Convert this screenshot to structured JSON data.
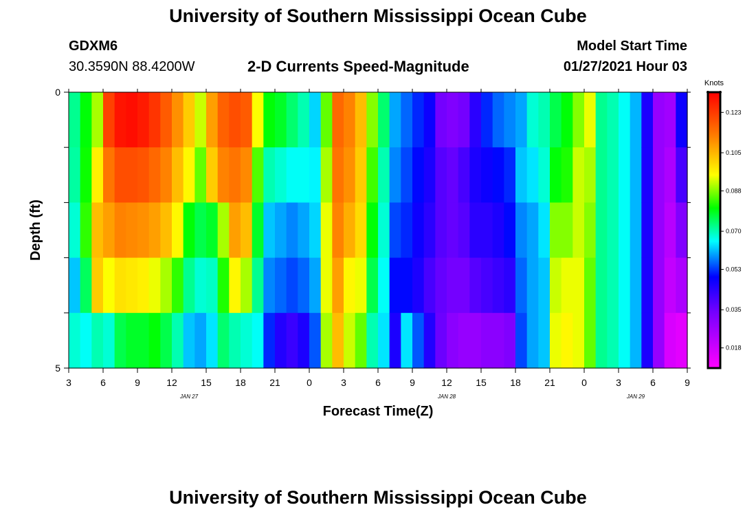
{
  "page": {
    "title_top": "University of Southern Mississippi Ocean Cube",
    "title_bottom": "University of Southern Mississippi Ocean Cube",
    "station_id": "GDXM6",
    "station_coords": "30.3590N 88.4200W",
    "chart_title": "2-D Currents Speed-Magnitude",
    "model_start_label": "Model Start Time",
    "model_start_value": "01/27/2021 Hour 03"
  },
  "colors": {
    "background": "#ffffff",
    "text": "#000000"
  },
  "chart_data": {
    "type": "heatmap",
    "title": "2-D Currents Speed-Magnitude",
    "xlabel": "Forecast Time(Z)",
    "ylabel": "Depth (ft)",
    "colorbar_label": "Knots",
    "x_tick_labels": [
      "3",
      "6",
      "9",
      "12",
      "15",
      "18",
      "21",
      "0",
      "3",
      "6",
      "9",
      "12",
      "15",
      "18",
      "21",
      "0",
      "3",
      "6",
      "9"
    ],
    "date_labels": [
      {
        "text": "JAN 27",
        "at_tick": 3.5
      },
      {
        "text": "JAN 28",
        "at_tick": 11
      },
      {
        "text": "JAN 29",
        "at_tick": 16.5
      }
    ],
    "y_tick_labels": [
      "0",
      "5"
    ],
    "y_range": [
      0,
      5
    ],
    "y_minor_ticks": 4,
    "colorbar_ticks": [
      "0.123",
      "0.105",
      "0.088",
      "0.070",
      "0.053",
      "0.035",
      "0.018"
    ],
    "colorbar_range": [
      0.009,
      0.132
    ],
    "grid_cols": 54,
    "depth_rows": 5,
    "columns": [
      [
        0.072,
        0.071,
        0.068,
        0.062,
        0.068
      ],
      [
        0.08,
        0.081,
        0.083,
        0.075,
        0.066
      ],
      [
        0.09,
        0.097,
        0.104,
        0.102,
        0.07
      ],
      [
        0.122,
        0.114,
        0.108,
        0.095,
        0.068
      ],
      [
        0.129,
        0.12,
        0.112,
        0.099,
        0.076
      ],
      [
        0.13,
        0.12,
        0.111,
        0.098,
        0.078
      ],
      [
        0.128,
        0.119,
        0.11,
        0.097,
        0.078
      ],
      [
        0.124,
        0.116,
        0.108,
        0.094,
        0.08
      ],
      [
        0.118,
        0.112,
        0.104,
        0.09,
        0.076
      ],
      [
        0.11,
        0.104,
        0.096,
        0.083,
        0.07
      ],
      [
        0.102,
        0.096,
        0.08,
        0.072,
        0.062
      ],
      [
        0.092,
        0.086,
        0.076,
        0.068,
        0.06
      ],
      [
        0.108,
        0.102,
        0.078,
        0.069,
        0.064
      ],
      [
        0.117,
        0.112,
        0.09,
        0.082,
        0.074
      ],
      [
        0.12,
        0.114,
        0.108,
        0.096,
        0.07
      ],
      [
        0.118,
        0.111,
        0.104,
        0.09,
        0.068
      ],
      [
        0.095,
        0.085,
        0.078,
        0.072,
        0.066
      ],
      [
        0.08,
        0.07,
        0.062,
        0.058,
        0.052
      ],
      [
        0.078,
        0.068,
        0.06,
        0.056,
        0.045
      ],
      [
        0.074,
        0.066,
        0.058,
        0.054,
        0.042
      ],
      [
        0.07,
        0.066,
        0.06,
        0.056,
        0.046
      ],
      [
        0.063,
        0.065,
        0.063,
        0.06,
        0.055
      ],
      [
        0.086,
        0.09,
        0.094,
        0.094,
        0.09
      ],
      [
        0.116,
        0.114,
        0.112,
        0.108,
        0.104
      ],
      [
        0.112,
        0.11,
        0.106,
        0.096,
        0.092
      ],
      [
        0.104,
        0.102,
        0.1,
        0.094,
        0.086
      ],
      [
        0.088,
        0.084,
        0.08,
        0.076,
        0.07
      ],
      [
        0.074,
        0.07,
        0.068,
        0.066,
        0.064
      ],
      [
        0.06,
        0.058,
        0.054,
        0.05,
        0.046
      ],
      [
        0.056,
        0.054,
        0.052,
        0.05,
        0.064
      ],
      [
        0.052,
        0.05,
        0.048,
        0.046,
        0.055
      ],
      [
        0.048,
        0.046,
        0.044,
        0.04,
        0.045
      ],
      [
        0.034,
        0.038,
        0.038,
        0.036,
        0.035
      ],
      [
        0.032,
        0.036,
        0.036,
        0.034,
        0.03
      ],
      [
        0.034,
        0.04,
        0.038,
        0.034,
        0.028
      ],
      [
        0.044,
        0.046,
        0.044,
        0.038,
        0.028
      ],
      [
        0.052,
        0.048,
        0.044,
        0.04,
        0.03
      ],
      [
        0.056,
        0.05,
        0.046,
        0.042,
        0.03
      ],
      [
        0.058,
        0.052,
        0.05,
        0.044,
        0.032
      ],
      [
        0.06,
        0.062,
        0.058,
        0.056,
        0.054
      ],
      [
        0.068,
        0.064,
        0.06,
        0.06,
        0.06
      ],
      [
        0.07,
        0.068,
        0.064,
        0.062,
        0.062
      ],
      [
        0.076,
        0.08,
        0.088,
        0.092,
        0.094
      ],
      [
        0.08,
        0.082,
        0.088,
        0.094,
        0.096
      ],
      [
        0.088,
        0.092,
        0.092,
        0.094,
        0.094
      ],
      [
        0.094,
        0.09,
        0.088,
        0.086,
        0.086
      ],
      [
        0.072,
        0.072,
        0.072,
        0.072,
        0.072
      ],
      [
        0.07,
        0.07,
        0.07,
        0.07,
        0.07
      ],
      [
        0.066,
        0.066,
        0.066,
        0.066,
        0.066
      ],
      [
        0.061,
        0.061,
        0.061,
        0.061,
        0.061
      ],
      [
        0.046,
        0.046,
        0.046,
        0.046,
        0.046
      ],
      [
        0.028,
        0.028,
        0.028,
        0.028,
        0.028
      ],
      [
        0.026,
        0.024,
        0.022,
        0.02,
        0.016
      ],
      [
        0.048,
        0.04,
        0.032,
        0.024,
        0.014
      ]
    ]
  }
}
